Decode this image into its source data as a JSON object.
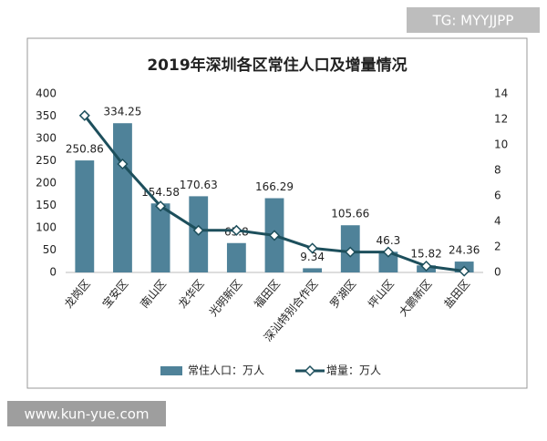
{
  "watermark_top": "TG: MYYJJPP",
  "watermark_bottom": "www.kun-yue.com",
  "chart_data": {
    "type": "bar-line",
    "title": "2019年深圳各区常住人口及增量情况",
    "categories": [
      "龙岗区",
      "宝安区",
      "南山区",
      "龙华区",
      "光明新区",
      "福田区",
      "深汕特别合作区",
      "罗湖区",
      "坪山区",
      "大鹏新区",
      "盐田区"
    ],
    "series": [
      {
        "name": "常住人口：万人",
        "type": "bar",
        "color": "#4f8299",
        "values": [
          250.86,
          334.25,
          154.58,
          170.63,
          65.8,
          166.29,
          9.34,
          105.66,
          46.3,
          15.82,
          24.36
        ]
      },
      {
        "name": "增量：万人",
        "type": "line",
        "axis": "y2",
        "color": "#1d4f5c",
        "values": [
          12.3,
          8.5,
          5.2,
          3.3,
          3.3,
          2.9,
          1.9,
          1.6,
          1.6,
          0.5,
          0.1
        ]
      }
    ],
    "ylim": [
      0,
      400
    ],
    "yticks": [
      0,
      50,
      100,
      150,
      200,
      250,
      300,
      350,
      400
    ],
    "y2lim": [
      0,
      14
    ],
    "y2ticks": [
      0,
      2,
      4,
      6,
      8,
      10,
      12,
      14
    ],
    "legend": "bottom"
  }
}
